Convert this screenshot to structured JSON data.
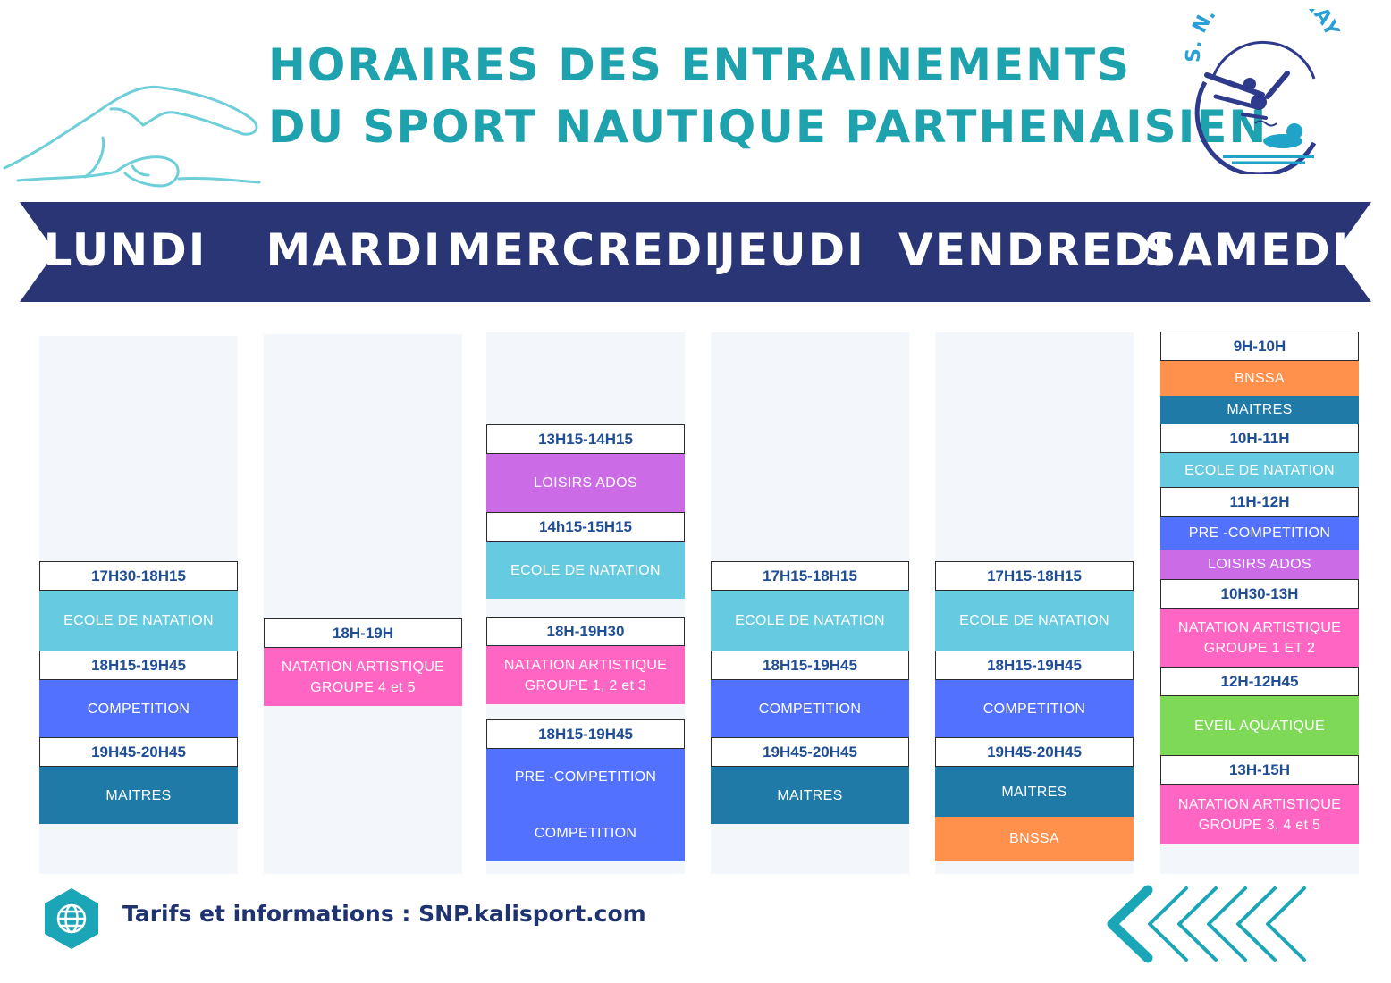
{
  "header": {
    "title_line1": "HORAIRES DES ENTRAINEMENTS",
    "title_line2": "DU SPORT NAUTIQUE PARTHENAISIEN",
    "logo_text": "S. N. PARTHENAY"
  },
  "colors": {
    "title": "#1ea2ad",
    "banner": "#293575",
    "time_text": "#1f4e96",
    "column_bg": "#f3f7fb",
    "light_blue": "#66cbe0",
    "blue": "#5271ff",
    "teal": "#1f7aa8",
    "pink": "#ff66c4",
    "purple": "#cb6ce6",
    "orange": "#ff914d",
    "green": "#7ed957"
  },
  "days": [
    {
      "name": "LUNDI",
      "slots": [
        {
          "type": "time",
          "text": "17H30-18H15"
        },
        {
          "type": "act",
          "text": "ECOLE DE NATATION",
          "color": "#66cbe0"
        },
        {
          "type": "time",
          "text": "18H15-19H45"
        },
        {
          "type": "act",
          "text": "COMPETITION",
          "color": "#5271ff"
        },
        {
          "type": "time",
          "text": "19H45-20H45"
        },
        {
          "type": "act",
          "text": "MAITRES",
          "color": "#1f7aa8"
        }
      ]
    },
    {
      "name": "MARDI",
      "slots": [
        {
          "type": "time",
          "text": "18H-19H"
        },
        {
          "type": "act",
          "text": "NATATION ARTISTIQUE GROUPE 4 et 5",
          "color": "#ff66c4"
        }
      ]
    },
    {
      "name": "MERCREDI",
      "slots": [
        {
          "type": "time",
          "text": "13H15-14H15"
        },
        {
          "type": "act",
          "text": "LOISIRS ADOS",
          "color": "#cb6ce6"
        },
        {
          "type": "time",
          "text": "14h15-15H15"
        },
        {
          "type": "act",
          "text": "ECOLE DE NATATION",
          "color": "#66cbe0"
        },
        {
          "type": "time",
          "text": "18H-19H30"
        },
        {
          "type": "act",
          "text": "NATATION ARTISTIQUE GROUPE 1, 2 et 3",
          "color": "#ff66c4"
        },
        {
          "type": "time",
          "text": "18H15-19H45"
        },
        {
          "type": "act",
          "text": "PRE -COMPETITION",
          "color": "#5271ff"
        },
        {
          "type": "act",
          "text": "COMPETITION",
          "color": "#5271ff"
        }
      ]
    },
    {
      "name": "JEUDI",
      "slots": [
        {
          "type": "time",
          "text": "17H15-18H15"
        },
        {
          "type": "act",
          "text": "ECOLE DE NATATION",
          "color": "#66cbe0"
        },
        {
          "type": "time",
          "text": "18H15-19H45"
        },
        {
          "type": "act",
          "text": "COMPETITION",
          "color": "#5271ff"
        },
        {
          "type": "time",
          "text": "19H45-20H45"
        },
        {
          "type": "act",
          "text": "MAITRES",
          "color": "#1f7aa8"
        }
      ]
    },
    {
      "name": "VENDREDI",
      "slots": [
        {
          "type": "time",
          "text": "17H15-18H15"
        },
        {
          "type": "act",
          "text": "ECOLE DE NATATION",
          "color": "#66cbe0"
        },
        {
          "type": "time",
          "text": "18H15-19H45"
        },
        {
          "type": "act",
          "text": "COMPETITION",
          "color": "#5271ff"
        },
        {
          "type": "time",
          "text": "19H45-20H45"
        },
        {
          "type": "act",
          "text": "MAITRES",
          "color": "#1f7aa8"
        },
        {
          "type": "act",
          "text": "BNSSA",
          "color": "#ff914d"
        }
      ]
    },
    {
      "name": "SAMEDI",
      "slots": [
        {
          "type": "time",
          "text": "9H-10H"
        },
        {
          "type": "act",
          "text": "BNSSA",
          "color": "#ff914d"
        },
        {
          "type": "act",
          "text": "MAITRES",
          "color": "#1f7aa8"
        },
        {
          "type": "time",
          "text": "10H-11H"
        },
        {
          "type": "act",
          "text": "ECOLE DE NATATION",
          "color": "#66cbe0"
        },
        {
          "type": "time",
          "text": "11H-12H"
        },
        {
          "type": "act",
          "text": "PRE -COMPETITION",
          "color": "#5271ff"
        },
        {
          "type": "act",
          "text": "LOISIRS ADOS",
          "color": "#cb6ce6"
        },
        {
          "type": "time",
          "text": "10H30-13H"
        },
        {
          "type": "act",
          "text": "NATATION ARTISTIQUE GROUPE 1 ET 2",
          "color": "#ff66c4"
        },
        {
          "type": "time",
          "text": "12H-12H45"
        },
        {
          "type": "act",
          "text": "EVEIL AQUATIQUE",
          "color": "#7ed957"
        },
        {
          "type": "time",
          "text": "13H-15H"
        },
        {
          "type": "act",
          "text": "NATATION ARTISTIQUE GROUPE 3, 4 et 5",
          "color": "#ff66c4"
        }
      ]
    }
  ],
  "footer": {
    "info_text": "Tarifs et informations :  SNP.kalisport.com",
    "globe_icon": "globe-icon",
    "chevrons_icon": "chevrons-left-icon"
  }
}
